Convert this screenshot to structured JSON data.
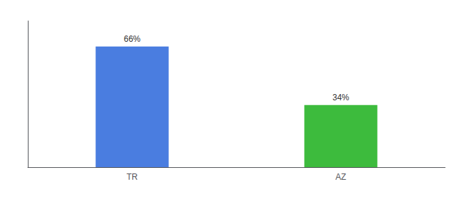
{
  "chart_data": {
    "type": "bar",
    "categories": [
      "TR",
      "AZ"
    ],
    "values": [
      66,
      34
    ],
    "value_labels": [
      "66%",
      "34%"
    ],
    "colors": [
      "#4a7de0",
      "#3dbb3d"
    ],
    "ylim": [
      0,
      80
    ],
    "yticks": [],
    "grid": false,
    "data_labels": true,
    "tick_labels": "x"
  }
}
